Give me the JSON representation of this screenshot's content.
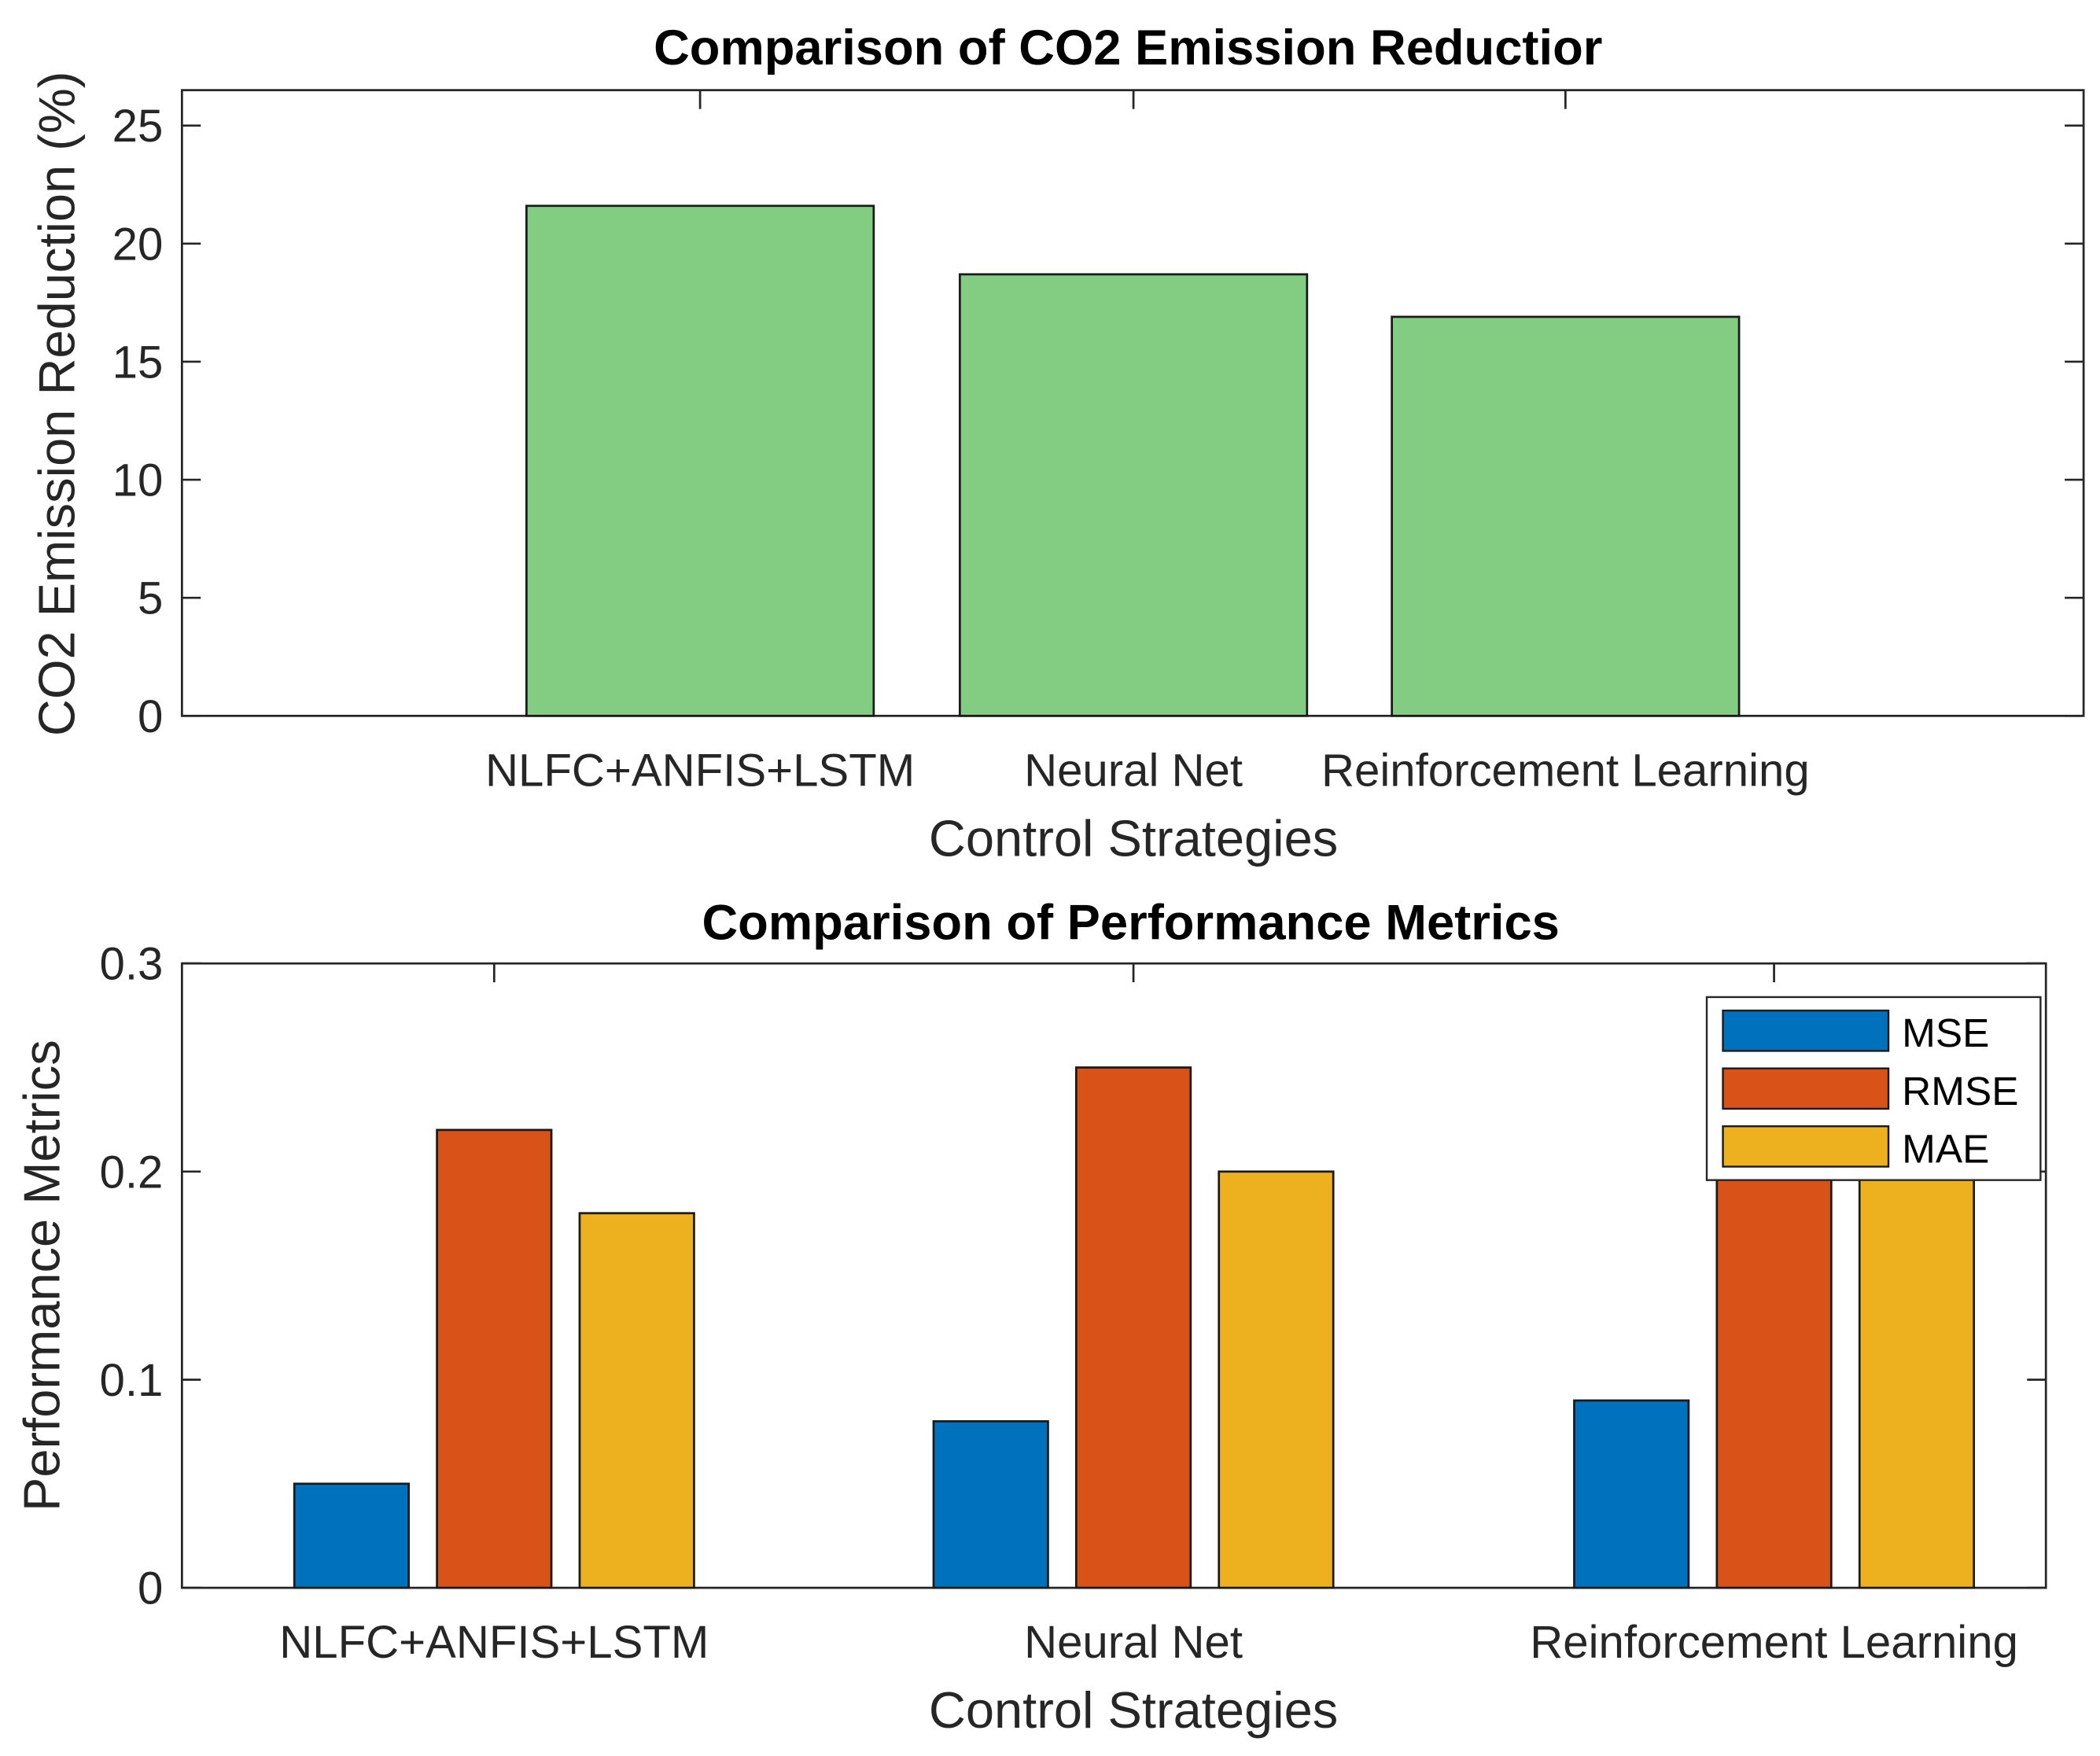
{
  "chart_data": [
    {
      "type": "bar",
      "title": "Comparison of CO2 Emission Reductior",
      "xlabel": "Control Strategies",
      "ylabel": "CO2 Emission Reduction (%)",
      "categories": [
        "NLFC+ANFIS+LSTM",
        "Neural Net",
        "Reinforcement Learning"
      ],
      "values": [
        21.6,
        18.7,
        16.9
      ],
      "ylim": [
        0,
        26.5
      ],
      "yticks": [
        0,
        5,
        10,
        15,
        20,
        25
      ],
      "color": "#82CD82",
      "grid": false
    },
    {
      "type": "bar",
      "title": "Comparison of Performance Metrics",
      "xlabel": "Control Strategies",
      "ylabel": "Performance Metrics",
      "categories": [
        "NLFC+ANFIS+LSTM",
        "Neural Net",
        "Reinforcement Learning"
      ],
      "series": [
        {
          "name": "MSE",
          "values": [
            0.05,
            0.08,
            0.09
          ],
          "color": "#0072BD"
        },
        {
          "name": "RMSE",
          "values": [
            0.22,
            0.25,
            0.26
          ],
          "color": "#D95319"
        },
        {
          "name": "MAE",
          "values": [
            0.18,
            0.2,
            0.21
          ],
          "color": "#EDB120"
        }
      ],
      "ylim": [
        0,
        0.3
      ],
      "yticks": [
        0,
        0.1,
        0.2,
        0.3
      ],
      "ytick_labels": [
        "0",
        "0.1",
        "0.2",
        "0.3"
      ],
      "legend": "top-right",
      "grid": false
    }
  ]
}
